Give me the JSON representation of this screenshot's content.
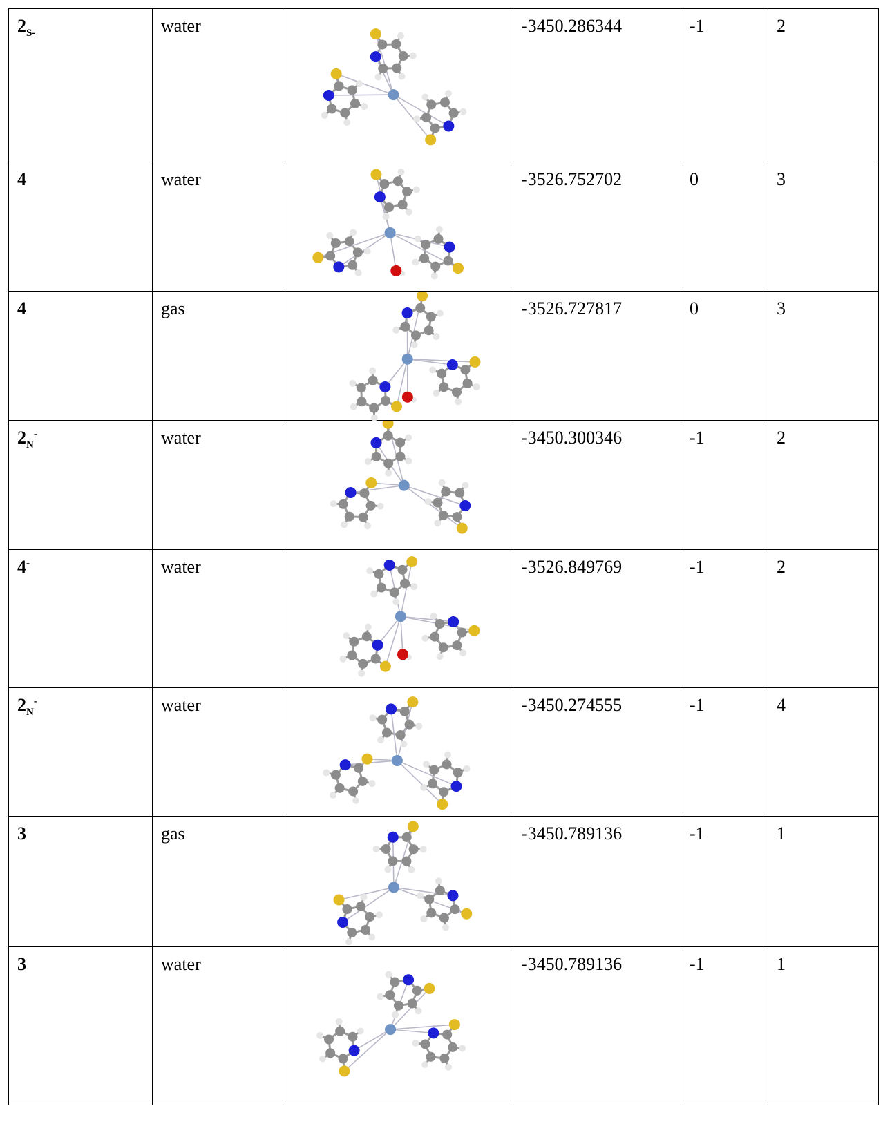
{
  "rows": [
    {
      "label": "2",
      "label_sub": "S-",
      "label_sup": "",
      "medium": "water",
      "energy": "-3450.286344",
      "charge": "-1",
      "multiplicity": "2",
      "molecule_icon": "complex-structure-icon"
    },
    {
      "label": "4",
      "label_sub": "",
      "label_sup": "",
      "medium": "water",
      "energy": "-3526.752702",
      "charge": "0",
      "multiplicity": "3",
      "molecule_icon": "complex-structure-icon"
    },
    {
      "label": "4",
      "label_sub": "",
      "label_sup": "",
      "medium": "gas",
      "energy": "-3526.727817",
      "charge": "0",
      "multiplicity": "3",
      "molecule_icon": "complex-structure-icon"
    },
    {
      "label": "2",
      "label_sub": "N",
      "label_sup": "-",
      "medium": "water",
      "energy": "-3450.300346",
      "charge": "-1",
      "multiplicity": "2",
      "molecule_icon": "complex-structure-icon"
    },
    {
      "label": "4",
      "label_sub": "",
      "label_sup": "-",
      "medium": "water",
      "energy": "-3526.849769",
      "charge": "-1",
      "multiplicity": "2",
      "molecule_icon": "complex-structure-icon"
    },
    {
      "label": "2",
      "label_sub": "N",
      "label_sup": "-",
      "medium": "water",
      "energy": "-3450.274555",
      "charge": "-1",
      "multiplicity": "4",
      "molecule_icon": "complex-structure-icon"
    },
    {
      "label": "3",
      "label_sub": "",
      "label_sup": "",
      "medium": "gas",
      "energy": "-3450.789136",
      "charge": "-1",
      "multiplicity": "1",
      "molecule_icon": "complex-structure-icon"
    },
    {
      "label": "3",
      "label_sub": "",
      "label_sup": "",
      "medium": "water",
      "energy": "-3450.789136",
      "charge": "-1",
      "multiplicity": "1",
      "molecule_icon": "complex-structure-icon"
    }
  ],
  "atom_colors": {
    "carbon": "#8c8c8c",
    "hydrogen": "#e6e6e6",
    "nitrogen": "#1c1fd6",
    "sulfur": "#e3bb22",
    "metal": "#6f93c4",
    "oxygen": "#d10f0f"
  }
}
